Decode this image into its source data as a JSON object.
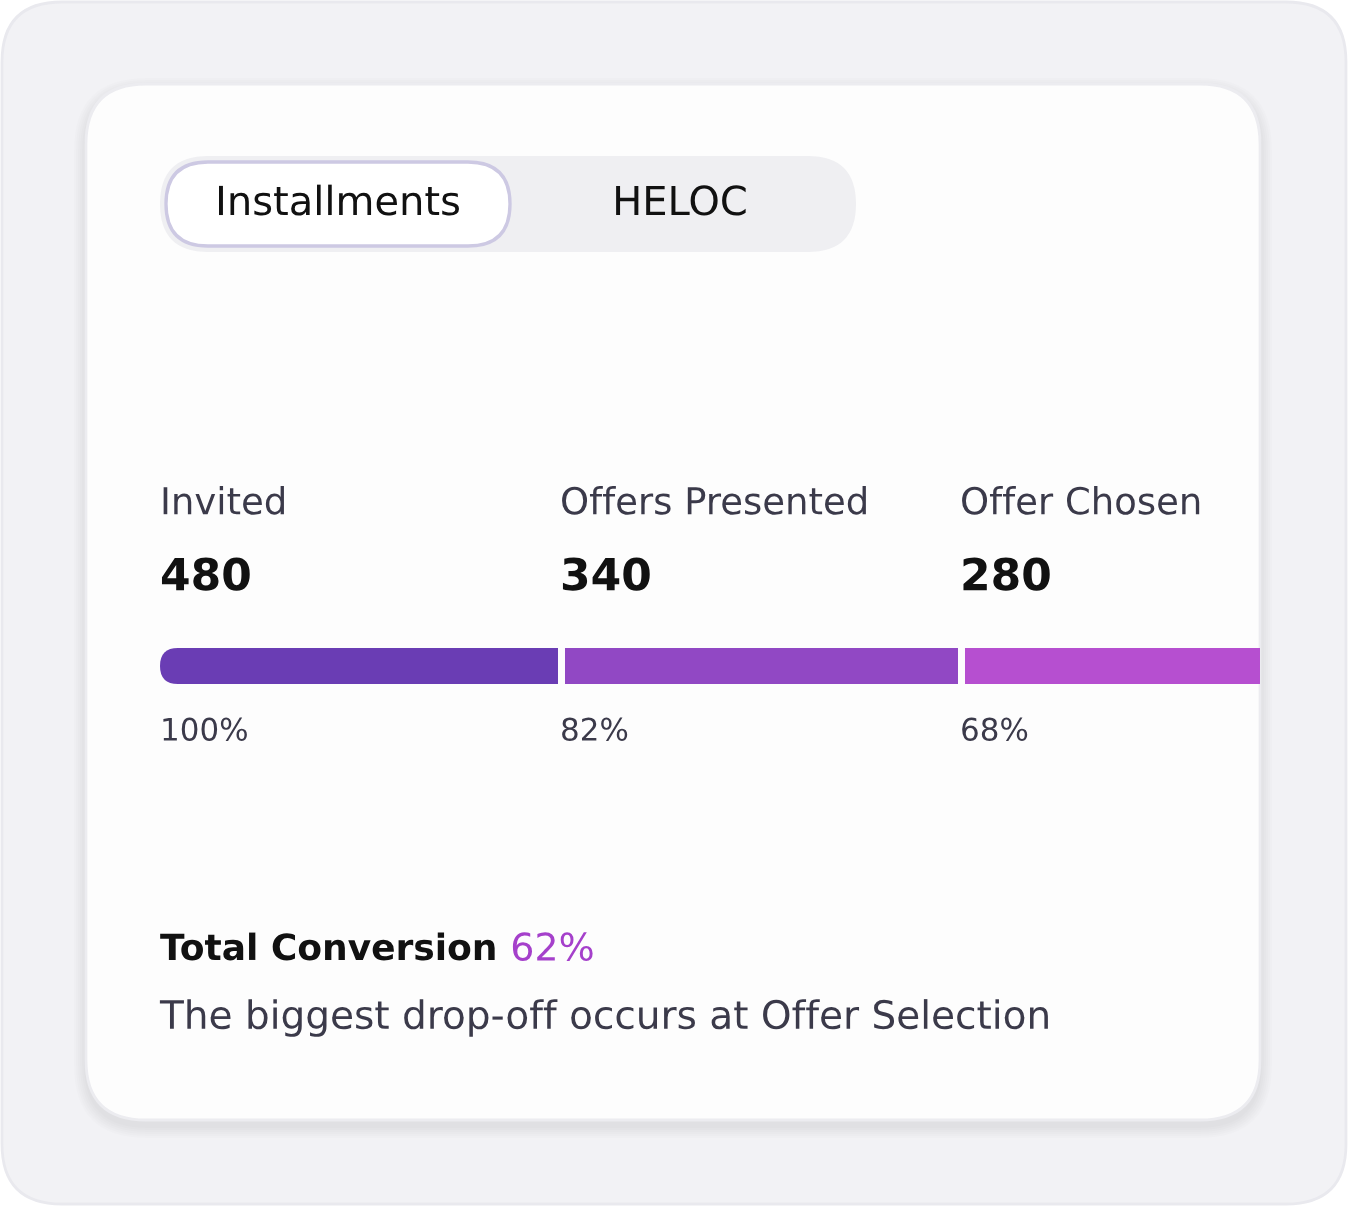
{
  "chart_data": {
    "type": "other",
    "categories": [
      "Invited",
      "Offers Presented",
      "Offer Chosen"
    ],
    "values": [
      480,
      340,
      280
    ],
    "data_labels": true,
    "colors": [
      "#6a3db4",
      "#9148c4",
      "#b64fd0"
    ],
    "annotations": [
      "Installments",
      "HELOC",
      {
        "text": "100%",
        "x": "Invited"
      },
      {
        "text": "82%",
        "x": "Offers Presented"
      },
      {
        "text": "68%",
        "x": "Offer Chosen"
      },
      "Total Conversion",
      "62%",
      "The biggest drop-off occurs at Offer Selection"
    ]
  }
}
